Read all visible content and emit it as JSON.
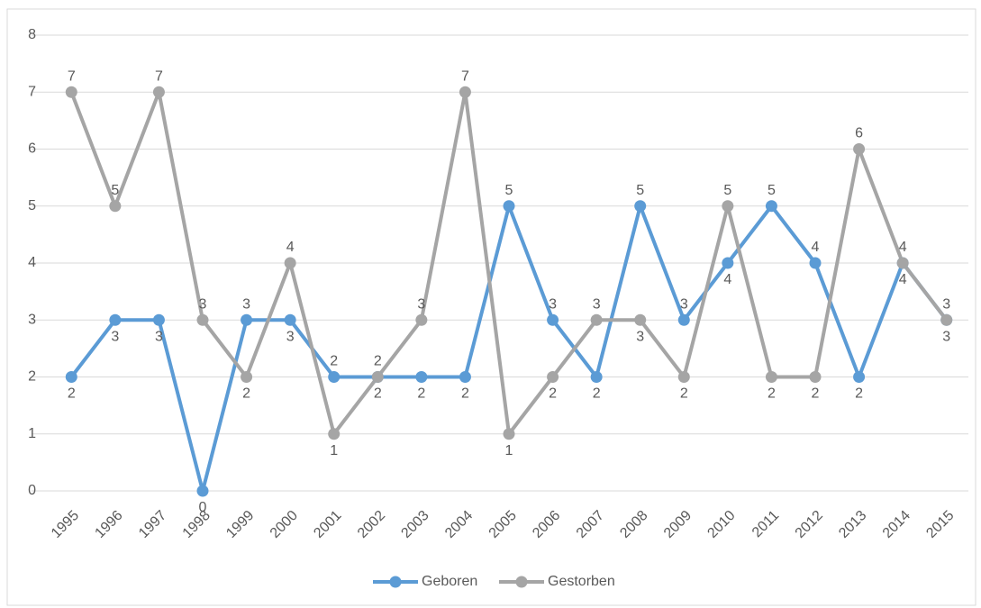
{
  "chart_data": {
    "type": "line",
    "categories": [
      "1995",
      "1996",
      "1997",
      "1998",
      "1999",
      "2000",
      "2001",
      "2002",
      "2003",
      "2004",
      "2005",
      "2006",
      "2007",
      "2008",
      "2009",
      "2010",
      "2011",
      "2012",
      "2013",
      "2014",
      "2015"
    ],
    "series": [
      {
        "name": "Geboren",
        "color": "#5b9bd5",
        "values": [
          2,
          3,
          3,
          0,
          3,
          3,
          2,
          2,
          2,
          2,
          5,
          3,
          2,
          5,
          3,
          4,
          5,
          4,
          2,
          4,
          3
        ]
      },
      {
        "name": "Gestorben",
        "color": "#a5a5a5",
        "values": [
          7,
          5,
          7,
          3,
          2,
          4,
          1,
          2,
          3,
          7,
          1,
          2,
          3,
          3,
          2,
          5,
          2,
          2,
          6,
          4,
          3
        ]
      }
    ],
    "ylim": [
      0,
      8
    ],
    "yticks": [
      0,
      1,
      2,
      3,
      4,
      5,
      6,
      7,
      8
    ],
    "grid": true,
    "legend": "bottom"
  }
}
